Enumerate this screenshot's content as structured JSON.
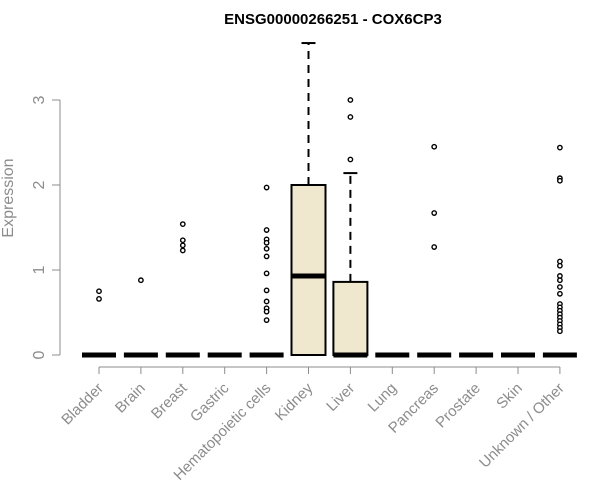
{
  "chart_data": {
    "type": "boxplot",
    "title": "ENSG00000266251 - COX6CP3",
    "xlabel": "",
    "ylabel": "Expression",
    "ylim": [
      0,
      3.7
    ],
    "yticks": [
      0,
      1,
      2,
      3
    ],
    "box_fill": "#EFE8CF",
    "box_stroke": "#000000",
    "axis_color": "#8c8c8c",
    "categories": [
      "Bladder",
      "Brain",
      "Breast",
      "Gastric",
      "Hematopoietic cells",
      "Kidney",
      "Liver",
      "Lung",
      "Pancreas",
      "Prostate",
      "Skin",
      "Unknown / Other"
    ],
    "series": [
      {
        "q1": 0,
        "median": 0,
        "q3": 0,
        "whisker_low": 0,
        "whisker_high": 0,
        "outliers": [
          0.75,
          0.66
        ]
      },
      {
        "q1": 0,
        "median": 0,
        "q3": 0,
        "whisker_low": 0,
        "whisker_high": 0,
        "outliers": [
          0.88
        ]
      },
      {
        "q1": 0,
        "median": 0,
        "q3": 0,
        "whisker_low": 0,
        "whisker_high": 0,
        "outliers": [
          1.54,
          1.35,
          1.29,
          1.23
        ]
      },
      {
        "q1": 0,
        "median": 0,
        "q3": 0,
        "whisker_low": 0,
        "whisker_high": 0,
        "outliers": []
      },
      {
        "q1": 0,
        "median": 0,
        "q3": 0,
        "whisker_low": 0,
        "whisker_high": 0,
        "outliers": [
          1.97,
          1.47,
          1.36,
          1.32,
          1.25,
          1.16,
          0.96,
          0.76,
          0.63,
          0.55,
          0.51,
          0.41
        ]
      },
      {
        "q1": 0,
        "median": 0.93,
        "q3": 2.0,
        "whisker_low": 0,
        "whisker_high": 3.67,
        "outliers": []
      },
      {
        "q1": 0,
        "median": 0,
        "q3": 0.86,
        "whisker_low": 0,
        "whisker_high": 2.14,
        "outliers": [
          3.0,
          2.8,
          2.3
        ]
      },
      {
        "q1": 0,
        "median": 0,
        "q3": 0,
        "whisker_low": 0,
        "whisker_high": 0,
        "outliers": []
      },
      {
        "q1": 0,
        "median": 0,
        "q3": 0,
        "whisker_low": 0,
        "whisker_high": 0,
        "outliers": [
          2.45,
          1.67,
          1.27
        ]
      },
      {
        "q1": 0,
        "median": 0,
        "q3": 0,
        "whisker_low": 0,
        "whisker_high": 0,
        "outliers": []
      },
      {
        "q1": 0,
        "median": 0,
        "q3": 0,
        "whisker_low": 0,
        "whisker_high": 0,
        "outliers": []
      },
      {
        "q1": 0,
        "median": 0,
        "q3": 0,
        "whisker_low": 0,
        "whisker_high": 0,
        "outliers": [
          2.44,
          2.08,
          2.05,
          1.1,
          1.05,
          0.93,
          0.88,
          0.8,
          0.72,
          0.6,
          0.56,
          0.52,
          0.48,
          0.44,
          0.4,
          0.36,
          0.32,
          0.28
        ]
      }
    ]
  }
}
